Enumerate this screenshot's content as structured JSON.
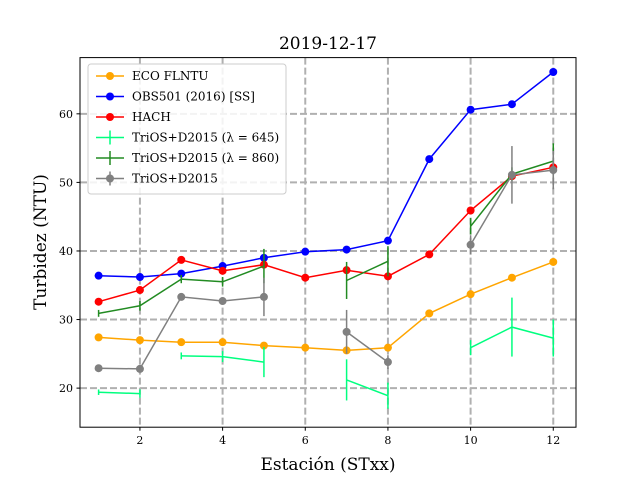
{
  "chart_data": {
    "type": "line",
    "title": "2019-12-17",
    "xlabel": "Estación (STxx)",
    "ylabel": "Turbidez (NTU)",
    "xlim": [
      0.55,
      12.55
    ],
    "ylim": [
      14.3,
      68.2
    ],
    "x_ticks": [
      2,
      4,
      6,
      8,
      10,
      12
    ],
    "y_ticks": [
      20,
      30,
      40,
      50,
      60
    ],
    "grid": "dashed, x and y",
    "legend_position": "top-left",
    "series": [
      {
        "name": "ECO FLNTU",
        "color": "#ffa500",
        "marker": "circle",
        "points": [
          [
            1,
            27.4
          ],
          [
            2,
            27.0
          ],
          [
            3,
            26.7
          ],
          [
            4,
            26.7
          ],
          [
            5,
            26.2
          ],
          [
            6,
            25.9
          ],
          [
            7,
            25.5
          ],
          [
            8,
            25.9
          ],
          [
            9,
            30.9
          ],
          [
            10,
            33.7
          ],
          [
            11,
            36.1
          ],
          [
            12,
            38.4
          ]
        ]
      },
      {
        "name": "OBS501 (2016) [SS]",
        "color": "#0000ff",
        "marker": "circle",
        "points": [
          [
            1,
            36.4
          ],
          [
            2,
            36.2
          ],
          [
            3,
            36.7
          ],
          [
            4,
            37.8
          ],
          [
            5,
            39.0
          ],
          [
            6,
            39.9
          ],
          [
            7,
            40.2
          ],
          [
            8,
            41.5
          ],
          [
            9,
            53.4
          ],
          [
            10,
            60.6
          ],
          [
            11,
            61.4
          ],
          [
            12,
            66.1
          ]
        ]
      },
      {
        "name": "HACH",
        "color": "#ff0000",
        "marker": "circle",
        "points": [
          [
            1,
            32.6
          ],
          [
            2,
            34.3
          ],
          [
            3,
            38.7
          ],
          [
            4,
            37.1
          ],
          [
            5,
            38.0
          ],
          [
            6,
            36.1
          ],
          [
            7,
            37.2
          ],
          [
            8,
            36.3
          ],
          [
            9,
            39.5
          ],
          [
            10,
            45.9
          ],
          [
            11,
            50.9
          ],
          [
            12,
            52.2
          ]
        ]
      },
      {
        "name": "TriOS+D2015 (λ = 645)",
        "color": "#00ff7f",
        "marker": "errorbar",
        "segments": [
          [
            [
              1,
              19.4,
              0.4
            ],
            [
              2,
              19.2,
              0.6
            ]
          ],
          [
            [
              3,
              24.7,
              0.5
            ],
            [
              4,
              24.6,
              0.8
            ],
            [
              5,
              23.8,
              2.2
            ]
          ],
          [
            [
              7,
              21.2,
              3.0
            ],
            [
              8,
              18.9,
              1.9
            ]
          ],
          [
            [
              10,
              25.9,
              1.1
            ],
            [
              11,
              28.9,
              4.3
            ],
            [
              12,
              27.3,
              2.7
            ]
          ]
        ]
      },
      {
        "name": "TriOS+D2015 (λ = 860)",
        "color": "#228b22",
        "marker": "errorbar",
        "segments": [
          [
            [
              1,
              30.9,
              0.5
            ],
            [
              2,
              32.0,
              0.7
            ],
            [
              3,
              35.9,
              0.6
            ],
            [
              4,
              35.5,
              0.7
            ],
            [
              5,
              37.8,
              2.5
            ]
          ],
          [
            [
              7,
              35.7,
              2.7
            ],
            [
              8,
              38.5,
              2.2
            ]
          ],
          [
            [
              10,
              43.6,
              1.2
            ],
            [
              11,
              51.2,
              1.0
            ],
            [
              12,
              53.1,
              2.6
            ]
          ]
        ]
      },
      {
        "name": "TriOS+D2015",
        "color": "#808080",
        "marker": "circle+errorbar",
        "segments": [
          [
            [
              1,
              22.9,
              0.3
            ],
            [
              2,
              22.8,
              0.3
            ],
            [
              3,
              33.3,
              0.4
            ],
            [
              4,
              32.7,
              0.5
            ],
            [
              5,
              33.3,
              2.8
            ]
          ],
          [
            [
              7,
              28.2,
              3.2
            ],
            [
              8,
              23.8,
              1.0
            ]
          ],
          [
            [
              10,
              40.9,
              1.4
            ],
            [
              11,
              51.1,
              4.2
            ],
            [
              12,
              51.8,
              2.8
            ]
          ]
        ]
      }
    ]
  }
}
